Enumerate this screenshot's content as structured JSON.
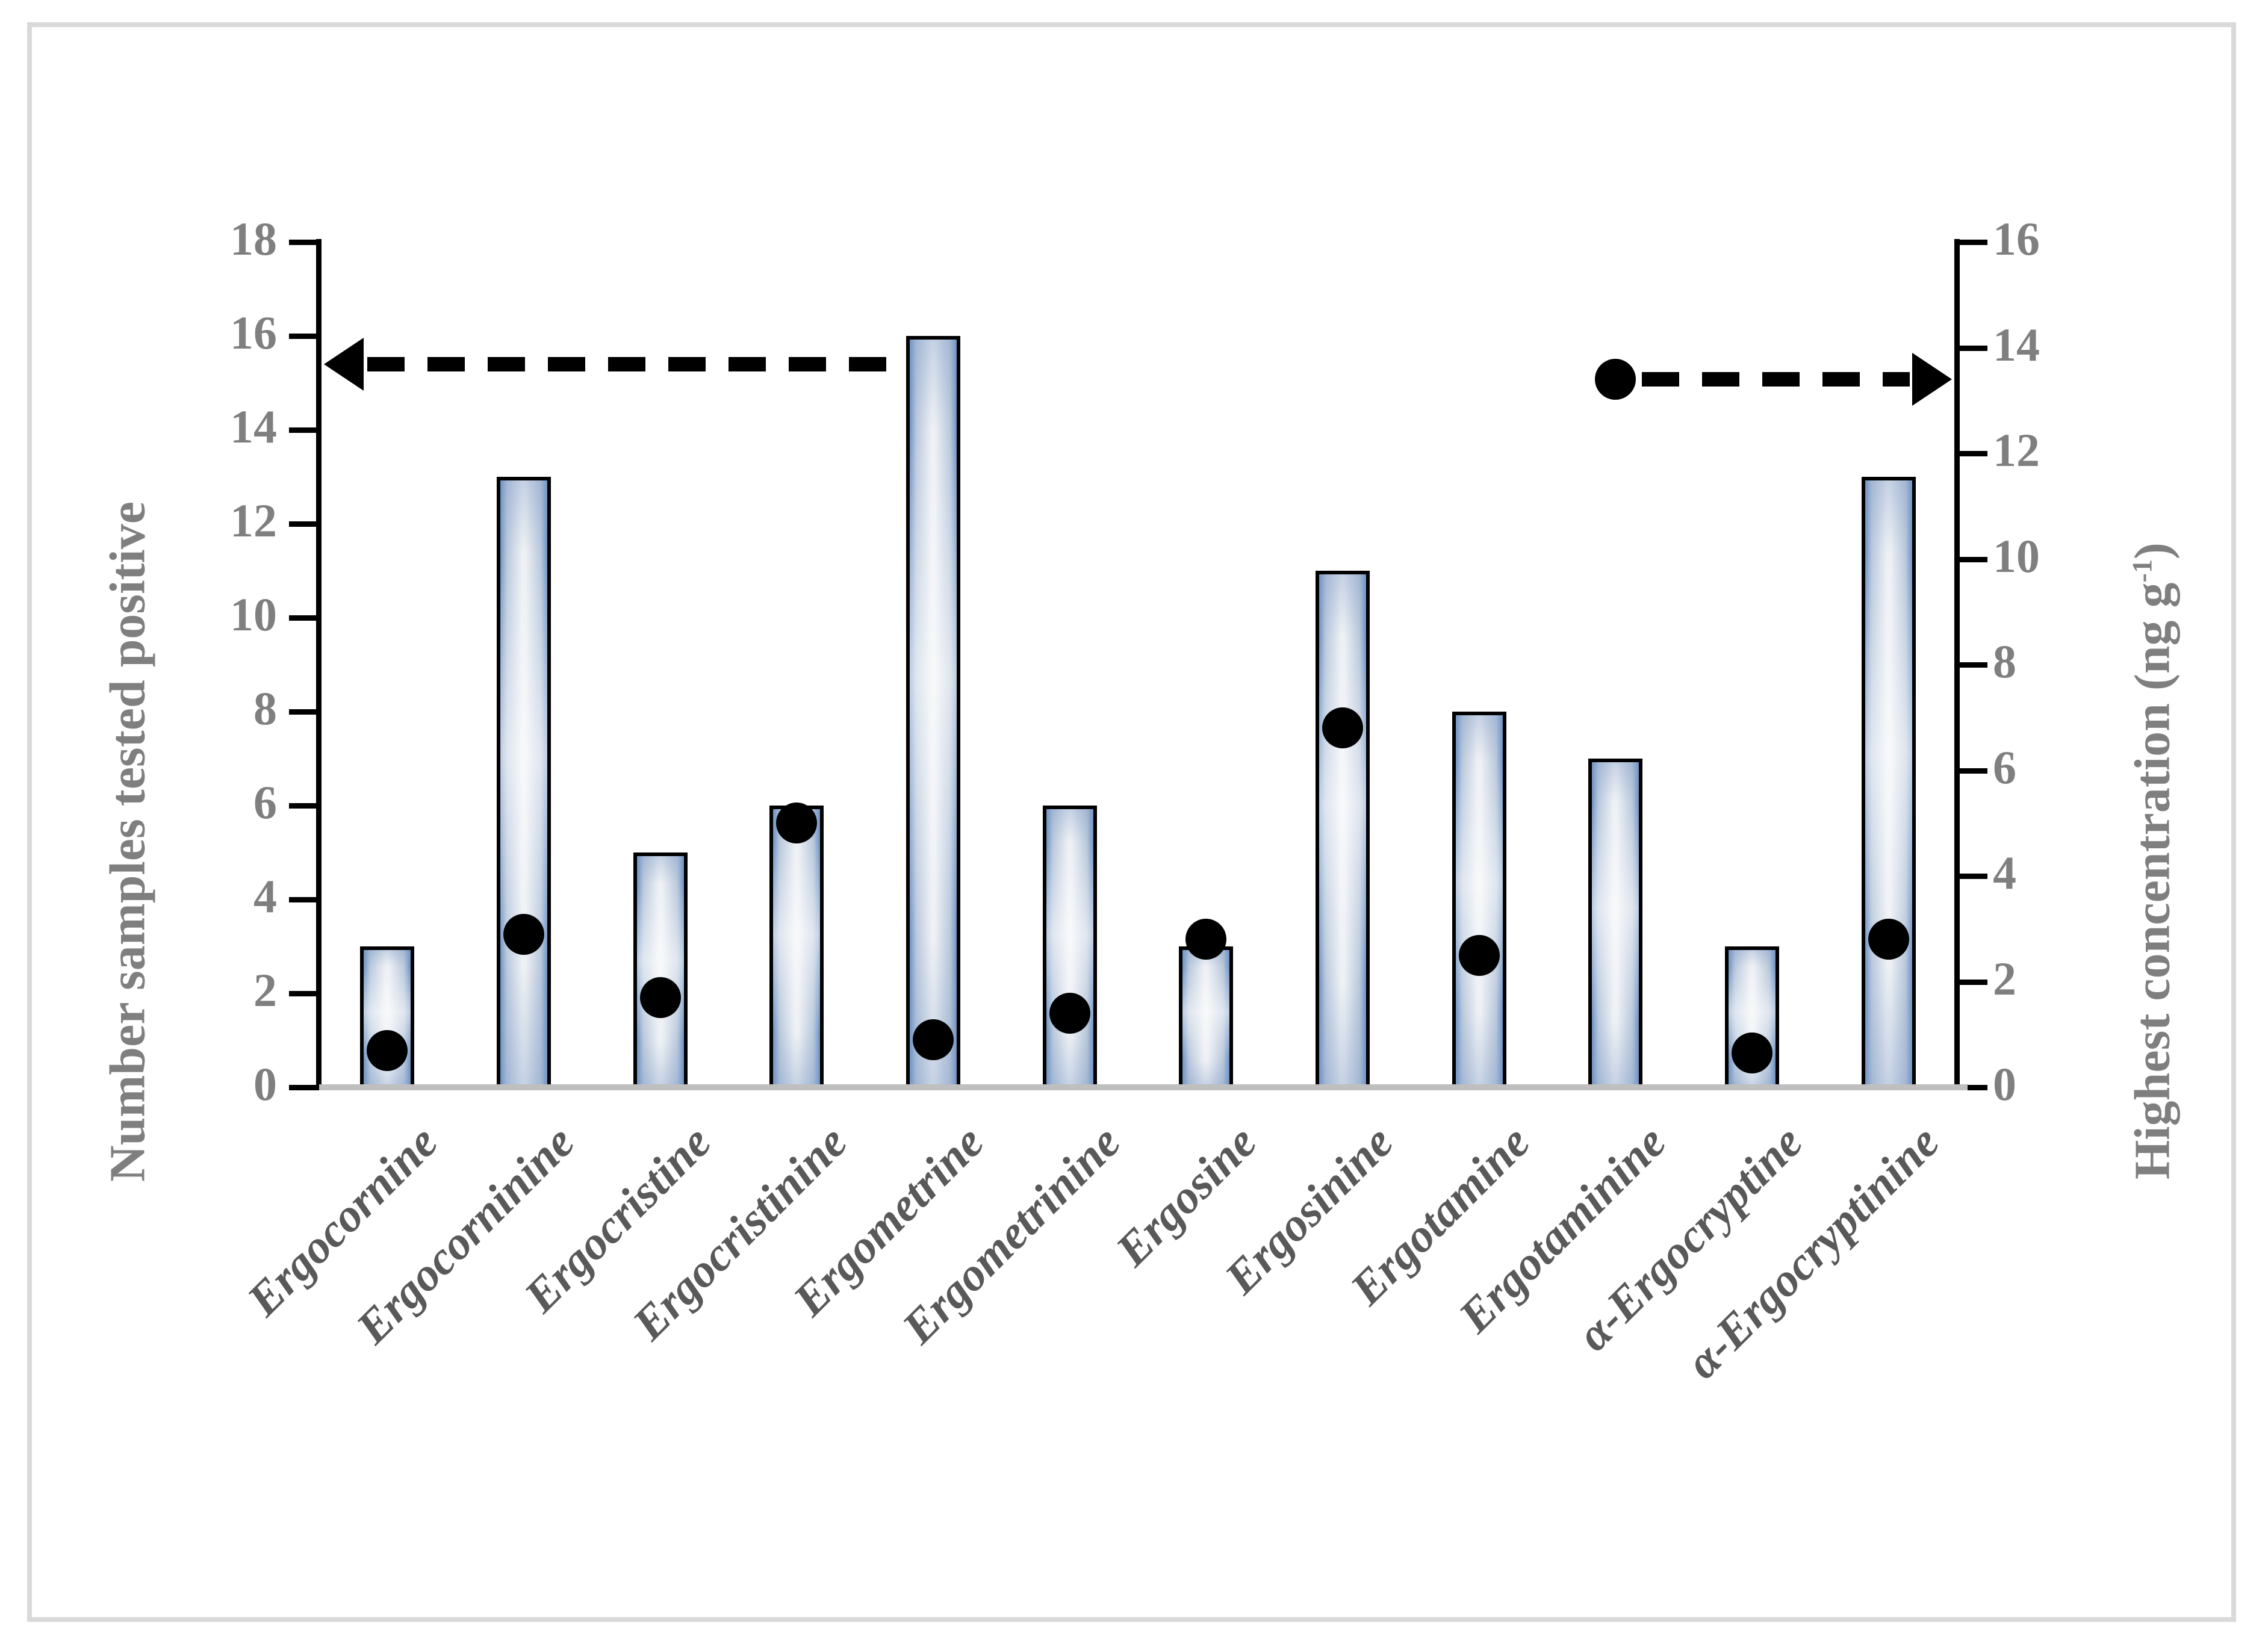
{
  "figure": {
    "left_axis_title": "Number samples tested positive",
    "right_axis_title_main": "Highest concentration (ng g",
    "right_axis_title_sup": "-1",
    "right_axis_title_close": ")"
  },
  "chart_data": {
    "type": "combo-bar-scatter",
    "title": "",
    "categories": [
      "Ergocornine",
      "Ergocorninine",
      "Ergocristine",
      "Ergocristinine",
      "Ergometrine",
      "Ergometrinine",
      "Ergosine",
      "Ergosinine",
      "Ergotamine",
      "Ergotaminine",
      "α-Ergocryptine",
      "α-Ergocryptinine"
    ],
    "series": [
      {
        "name": "Number samples tested positive",
        "type": "bar",
        "axis": "left",
        "values": [
          3,
          13,
          5,
          6,
          16,
          6,
          3,
          11,
          8,
          7,
          3,
          13
        ]
      },
      {
        "name": "Highest concentration (ng g-1)",
        "type": "scatter",
        "axis": "right",
        "values": [
          0.7,
          2.9,
          1.7,
          5.0,
          0.9,
          1.4,
          2.8,
          6.8,
          2.5,
          13.4,
          0.65,
          2.8
        ]
      }
    ],
    "left_axis": {
      "label": "Number samples tested positive",
      "min": 0,
      "max": 18,
      "step": 2
    },
    "right_axis": {
      "label": "Highest concentration (ng g-1)",
      "min": 0,
      "max": 16,
      "step": 2
    },
    "grid": false,
    "legend": null,
    "annotations": {
      "arrows": [
        {
          "name": "bar-series-axis-arrow",
          "direction": "left",
          "axis": "left",
          "value": 15.4,
          "to_category_index": 4
        },
        {
          "name": "dot-series-axis-arrow",
          "direction": "right",
          "axis": "right",
          "value": 13.4,
          "from_category_index": 9
        }
      ]
    }
  },
  "colors": {
    "axis_line": "#000000",
    "baseline": "#bfbfbf",
    "tick_text": "#7f7f7f",
    "category_text": "#595959",
    "bar_edge_blue": "#6d93c4",
    "bar_mid_blue": "#b9c8dc",
    "bar_center_light": "#edf0f4",
    "bar_border": "#000000",
    "dot": "#000000",
    "arrow": "#000000",
    "figure_border": "#d9d9d9"
  }
}
